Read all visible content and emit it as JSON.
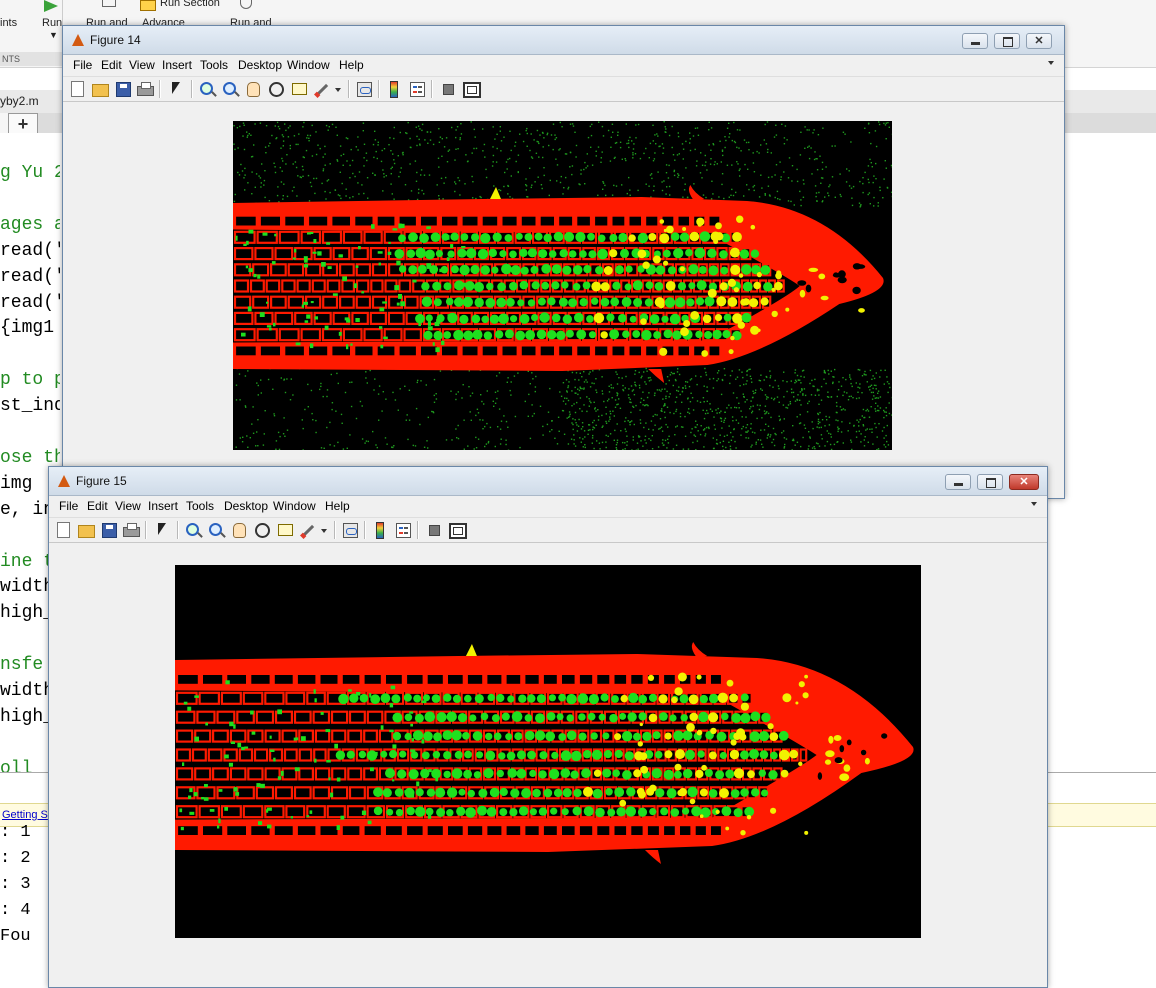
{
  "desktop": {
    "ribbon": {
      "labels": {
        "points": "ints",
        "run": "Run",
        "run_and": "Run and",
        "run_section": "Run Section",
        "advance": "Advance",
        "run_and_2": "Run and"
      },
      "section": "NTS"
    },
    "editor": {
      "file_name": "yby2.m",
      "code_lines": [
        {
          "text": "g Yu 2",
          "comment": true
        },
        {
          "text": "",
          "comment": false
        },
        {
          "text": "ages a",
          "comment": true
        },
        {
          "text": "read('",
          "comment": false
        },
        {
          "text": "read('",
          "comment": false
        },
        {
          "text": "read('",
          "comment": false
        },
        {
          "text": " {img1",
          "comment": false
        },
        {
          "text": "",
          "comment": false
        },
        {
          "text": "p to p",
          "comment": true
        },
        {
          "text": "st_ind",
          "comment": false
        },
        {
          "text": "",
          "comment": false
        },
        {
          "text": "ose th",
          "comment": true
        },
        {
          "text": " img",
          "comment": false
        },
        {
          "text": "e, in",
          "comment": false
        },
        {
          "text": "",
          "comment": false
        },
        {
          "text": "ine t",
          "comment": true
        },
        {
          "text": "width",
          "comment": false
        },
        {
          "text": "high_",
          "comment": false
        },
        {
          "text": "",
          "comment": false
        },
        {
          "text": "nsfe",
          "comment": true
        },
        {
          "text": "width",
          "comment": false
        },
        {
          "text": "high_",
          "comment": false
        },
        {
          "text": "",
          "comment": false
        },
        {
          "text": "oll ",
          "comment": true
        }
      ]
    },
    "command_window": {
      "getting_started": "Getting S",
      "lines": [
        ": 1 ",
        ": 2 ",
        ": 3 ",
        ": 4 ",
        " Fou"
      ]
    }
  },
  "menus": [
    "File",
    "Edit",
    "View",
    "Insert",
    "Tools",
    "Desktop",
    "Window",
    "Help"
  ],
  "figures": [
    {
      "title": "Figure 14",
      "active": false,
      "image": {
        "kind": "overlay-with-noise"
      }
    },
    {
      "title": "Figure 15",
      "active": true,
      "image": {
        "kind": "overlay-clean"
      }
    }
  ],
  "colors": {
    "membrane": "#ff1a00",
    "nuclei": "#1ee01e",
    "overlap": "#f2f200",
    "background": "#000000",
    "noise": "#1f9a1f"
  }
}
